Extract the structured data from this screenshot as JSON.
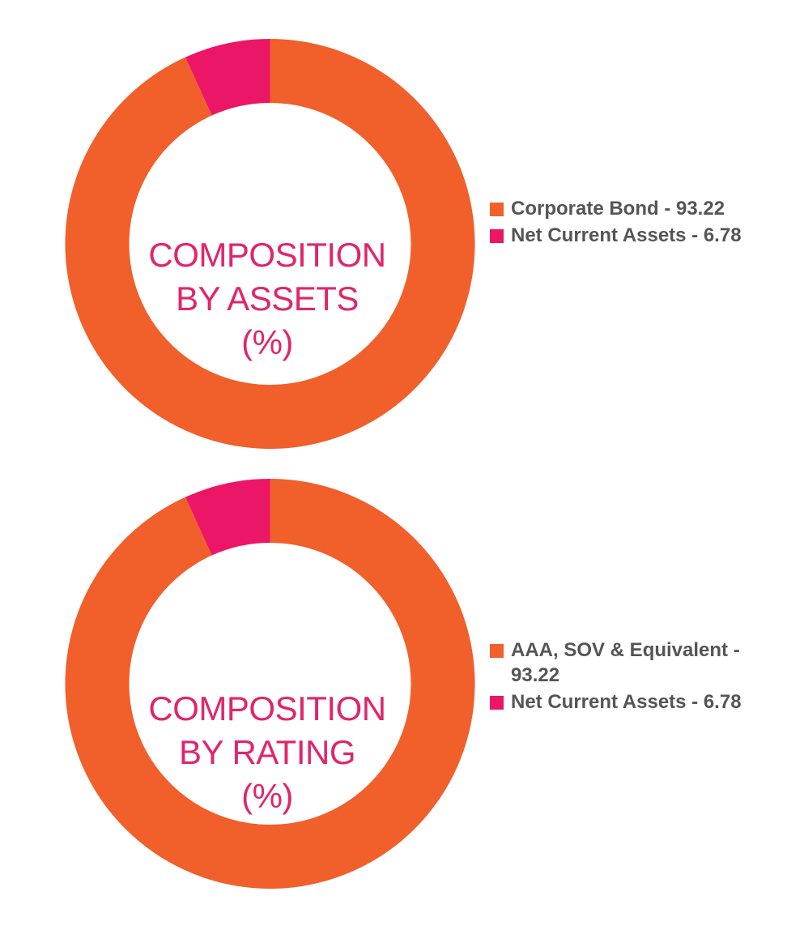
{
  "colors": {
    "primary": "#f15f2a",
    "secondary": "#ec1667",
    "title": "#e0256d",
    "legend_text": "#555555"
  },
  "chart_data": [
    {
      "type": "pie",
      "title_lines": [
        "COMPOSITION",
        "BY ASSETS",
        "(%)"
      ],
      "categories": [
        "Corporate Bond",
        "Net Current Assets"
      ],
      "values": [
        93.22,
        6.78
      ],
      "legend_labels": [
        "Corporate Bond - 93.22",
        "Net Current Assets - 6.78"
      ],
      "colors": [
        "#f15f2a",
        "#ec1667"
      ],
      "legend_placement": "right"
    },
    {
      "type": "pie",
      "title_lines": [
        "COMPOSITION",
        "BY RATING",
        "(%)"
      ],
      "categories": [
        "AAA, SOV & Equivalent",
        "Net Current Assets"
      ],
      "values": [
        93.22,
        6.78
      ],
      "legend_labels": [
        "AAA, SOV & Equivalent - 93.22",
        "Net Current Assets - 6.78"
      ],
      "colors": [
        "#f15f2a",
        "#ec1667"
      ],
      "legend_placement": "right"
    }
  ]
}
